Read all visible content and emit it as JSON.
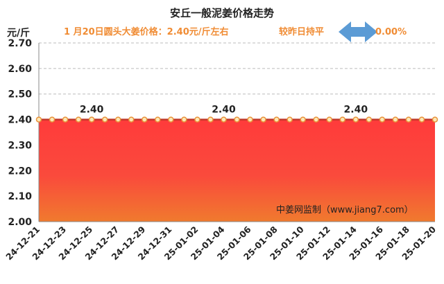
{
  "colors": {
    "accent": "#f08c34",
    "arrow": "#5b9bd5",
    "fill_top": "#ff3b3b",
    "fill_bottom": "#f07a2e",
    "line": "#c0392b",
    "marker_fill": "#fde7b5",
    "marker_stroke": "#e8923a",
    "grid": "#bbbbbb"
  },
  "header": {
    "title": "安丘一般泥姜价格走势",
    "price_note": "1 月20日圆头大姜价格：2.40元/斤左右",
    "change_note": "较昨日持平",
    "change_value": "0.00%",
    "change_icon": "double-arrow-icon"
  },
  "chart_data": {
    "type": "area",
    "title": "安丘一般泥姜价格走势",
    "ylabel": "元/斤",
    "xlabel": "",
    "ylim": [
      2.0,
      2.7
    ],
    "yticks": [
      "2.00",
      "2.10",
      "2.20",
      "2.30",
      "2.40",
      "2.50",
      "2.60",
      "2.70"
    ],
    "grid": true,
    "x": [
      "24-12-21",
      "24-12-22",
      "24-12-23",
      "24-12-24",
      "24-12-25",
      "24-12-26",
      "24-12-27",
      "24-12-28",
      "24-12-29",
      "24-12-30",
      "24-12-31",
      "25-01-01",
      "25-01-02",
      "25-01-03",
      "25-01-04",
      "25-01-05",
      "25-01-06",
      "25-01-07",
      "25-01-08",
      "25-01-09",
      "25-01-10",
      "25-01-11",
      "25-01-12",
      "25-01-13",
      "25-01-14",
      "25-01-15",
      "25-01-16",
      "25-01-17",
      "25-01-18",
      "25-01-19",
      "25-01-20"
    ],
    "xtick_labels": [
      "24-12-21",
      "24-12-23",
      "24-12-25",
      "24-12-27",
      "24-12-29",
      "24-12-31",
      "25-01-02",
      "25-01-04",
      "25-01-06",
      "25-01-08",
      "25-01-10",
      "25-01-12",
      "25-01-14",
      "25-01-16",
      "25-01-18",
      "25-01-20"
    ],
    "values": [
      2.4,
      2.4,
      2.4,
      2.4,
      2.4,
      2.4,
      2.4,
      2.4,
      2.4,
      2.4,
      2.4,
      2.4,
      2.4,
      2.4,
      2.4,
      2.4,
      2.4,
      2.4,
      2.4,
      2.4,
      2.4,
      2.4,
      2.4,
      2.4,
      2.4,
      2.4,
      2.4,
      2.4,
      2.4,
      2.4,
      2.4
    ],
    "data_labels": [
      {
        "x": "24-12-25",
        "text": "2.40"
      },
      {
        "x": "25-01-04",
        "text": "2.40"
      },
      {
        "x": "25-01-14",
        "text": "2.40"
      }
    ],
    "annotation": "中姜网监制（www.jiang7.com）"
  }
}
